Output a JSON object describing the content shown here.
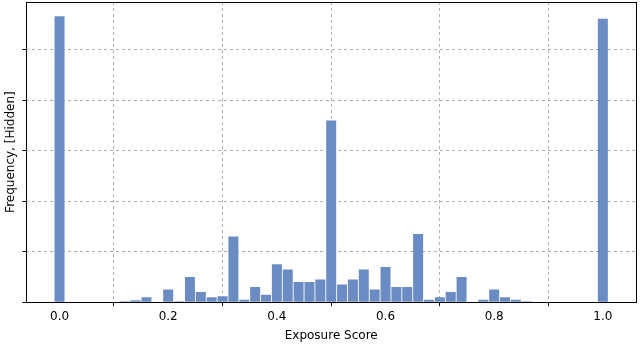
{
  "chart_data": {
    "type": "histogram",
    "x_label": "Exposure Score",
    "y_label": "Frequency, [Hidden]",
    "bins": [
      -0.01,
      0.01,
      0.03,
      0.05,
      0.07,
      0.09,
      0.11,
      0.13,
      0.15,
      0.17,
      0.19,
      0.21,
      0.23,
      0.25,
      0.27,
      0.29,
      0.31,
      0.33,
      0.35,
      0.37,
      0.39,
      0.41,
      0.43,
      0.45,
      0.47,
      0.49,
      0.51,
      0.53,
      0.55,
      0.57,
      0.59,
      0.61,
      0.63,
      0.65,
      0.67,
      0.69,
      0.71,
      0.73,
      0.75,
      0.77,
      0.79,
      0.81,
      0.83,
      0.85,
      0.87,
      0.89,
      0.91,
      0.93,
      0.95,
      0.97,
      0.99,
      1.01
    ],
    "values": [
      5.67,
      0,
      0,
      0,
      0,
      0,
      0.02,
      0.04,
      0.1,
      0,
      0.25,
      0.02,
      0.5,
      0.2,
      0.1,
      0.12,
      1.3,
      0.05,
      0.3,
      0.15,
      0.75,
      0.65,
      0.4,
      0.4,
      0.45,
      3.6,
      0.35,
      0.45,
      0.65,
      0.25,
      0.7,
      0.3,
      0.3,
      1.35,
      0.05,
      0.1,
      0.2,
      0.5,
      0,
      0.05,
      0.25,
      0.1,
      0.05,
      0.02,
      0.01,
      0,
      0,
      0,
      0,
      0,
      5.62
    ],
    "color": "#6a8cc2",
    "xlim": [
      -0.061,
      1.061
    ],
    "xticks": [
      {
        "value": 0,
        "label": "0.0"
      },
      {
        "value": 0.2,
        "label": "0.2"
      },
      {
        "value": 0.4,
        "label": "0.4"
      },
      {
        "value": 0.6,
        "label": "0.6"
      },
      {
        "value": 0.8,
        "label": "0.8"
      },
      {
        "value": 1,
        "label": "1.0"
      }
    ],
    "ylim": [
      0,
      5.95
    ],
    "yticks": [
      0,
      1,
      2,
      3,
      4,
      5
    ],
    "grid": true,
    "tick_labels": "x"
  }
}
